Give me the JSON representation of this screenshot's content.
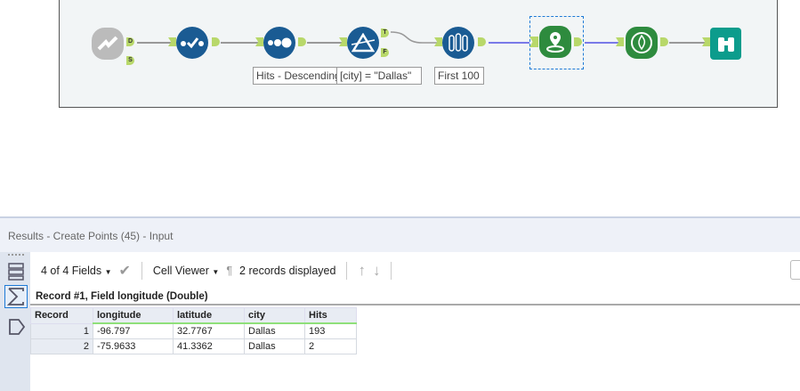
{
  "workflow": {
    "tools": [
      {
        "name": "input-tool",
        "icon": "cloud-input-icon",
        "anchors": [
          "D",
          "S"
        ]
      },
      {
        "name": "select-tool",
        "icon": "select-check-icon"
      },
      {
        "name": "sort-tool",
        "icon": "sort-dots-icon",
        "annotation": "Hits - Descending"
      },
      {
        "name": "filter-tool",
        "icon": "filter-prism-icon",
        "annotation": "[city] = \"Dallas\"",
        "anchors": [
          "T",
          "F"
        ]
      },
      {
        "name": "sample-tool",
        "icon": "sample-tubes-icon",
        "annotation": "First 100"
      },
      {
        "name": "create-points-tool",
        "icon": "map-pin-icon"
      },
      {
        "name": "heatmap-tool",
        "icon": "heatmap-flame-icon"
      },
      {
        "name": "browse-tool",
        "icon": "binoculars-icon"
      }
    ],
    "colors": {
      "blue": "#1a5b93",
      "green": "#2e8b3e",
      "teal": "#0c9c8c",
      "anchor": "#b8d86a"
    }
  },
  "results": {
    "title": "Results - Create Points (45) - Input",
    "toolbar": {
      "fields": "4 of 4 Fields",
      "viewer": "Cell Viewer",
      "pilcrow": "¶",
      "records": "2 records displayed"
    },
    "record_info": "Record #1, Field longitude (Double)",
    "columns": [
      "Record",
      "longitude",
      "latitude",
      "city",
      "Hits"
    ],
    "rows": [
      [
        "1",
        "-96.797",
        "32.7767",
        "Dallas",
        "193"
      ],
      [
        "2",
        "-75.9633",
        "41.3362",
        "Dallas",
        "2"
      ]
    ]
  }
}
